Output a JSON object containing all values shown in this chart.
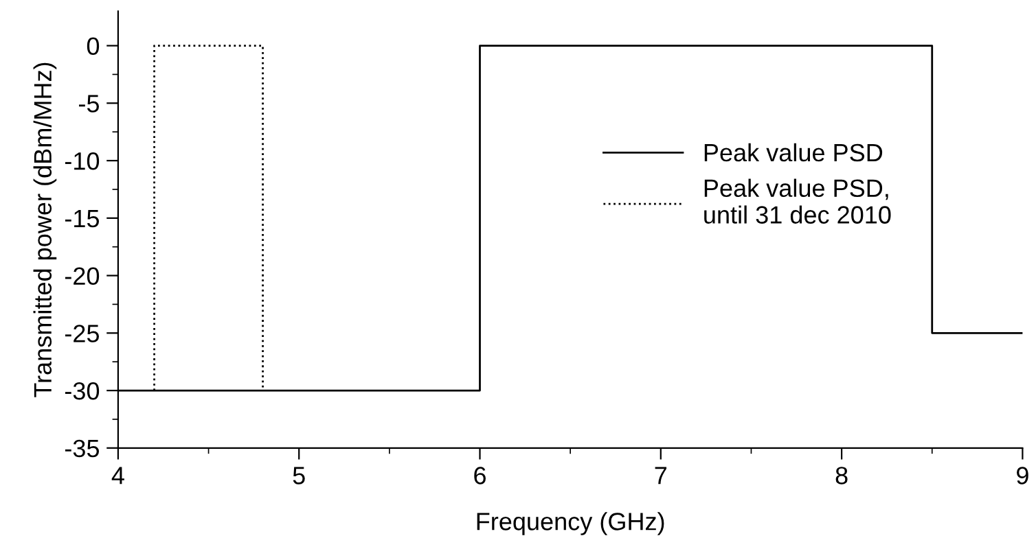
{
  "chart_data": {
    "type": "line",
    "xlabel": "Frequency (GHz)",
    "ylabel": "Transmitted power (dBm/MHz)",
    "series": [
      {
        "name": "Peak value PSD",
        "color": "#000000",
        "line_style": "solid",
        "x": [
          4,
          6,
          6,
          8.5,
          8.5,
          9
        ],
        "values": [
          -30,
          -30,
          0,
          0,
          -25,
          -25
        ]
      },
      {
        "name": "Peak value PSD,\nuntil 31 dec 2010",
        "color": "#000000",
        "line_style": "dotted",
        "x": [
          4.2,
          4.2,
          4.8,
          4.8
        ],
        "values": [
          -30,
          0,
          0,
          -30
        ]
      }
    ],
    "xlim": [
      4,
      9
    ],
    "ylim": [
      -35,
      3
    ],
    "xticks": [
      4,
      5,
      6,
      7,
      8,
      9
    ],
    "yticks": [
      -35,
      -30,
      -25,
      -20,
      -15,
      -10,
      -5,
      0
    ],
    "grid": false,
    "legend": "right",
    "marker": "none"
  }
}
